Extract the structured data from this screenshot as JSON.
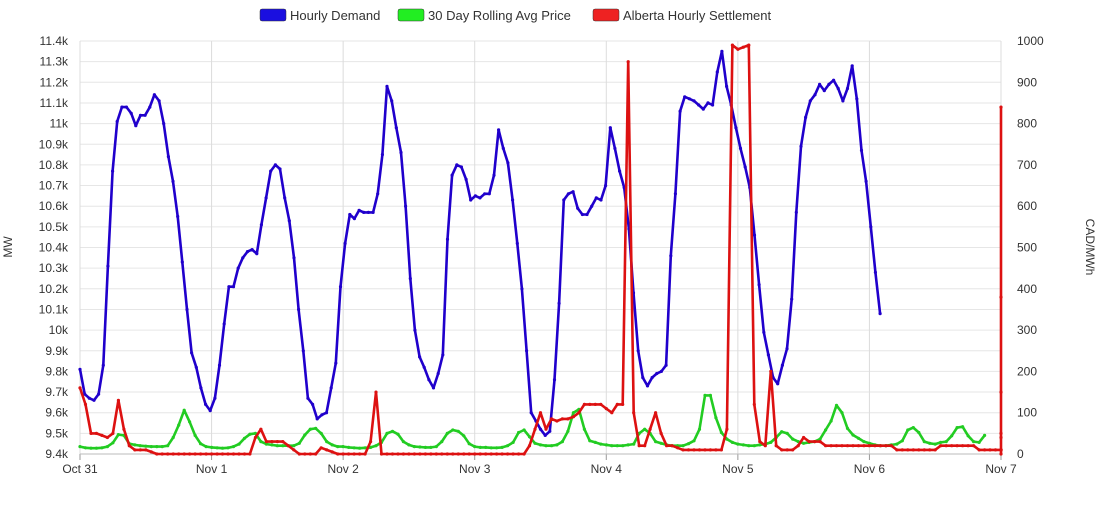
{
  "chart_data": {
    "type": "line",
    "title": "",
    "xlabel": "",
    "ylabel_left": "MW",
    "ylabel_right": "CAD/MWh",
    "ylim_left": [
      9400,
      11400
    ],
    "ylim_right": [
      0,
      1000
    ],
    "grid": true,
    "legend_position": "top",
    "x_range_hours": [
      0,
      168
    ],
    "x_ticks": [
      {
        "hour": 0,
        "label": "Oct 31"
      },
      {
        "hour": 24,
        "label": "Nov 1"
      },
      {
        "hour": 48,
        "label": "Nov 2"
      },
      {
        "hour": 72,
        "label": "Nov 3"
      },
      {
        "hour": 96,
        "label": "Nov 4"
      },
      {
        "hour": 120,
        "label": "Nov 5"
      },
      {
        "hour": 144,
        "label": "Nov 6"
      },
      {
        "hour": 168,
        "label": "Nov 7"
      }
    ],
    "y_ticks_left": [
      "9.4k",
      "9.5k",
      "9.6k",
      "9.7k",
      "9.8k",
      "9.9k",
      "10k",
      "10.1k",
      "10.2k",
      "10.3k",
      "10.4k",
      "10.5k",
      "10.6k",
      "10.7k",
      "10.8k",
      "10.9k",
      "11k",
      "11.1k",
      "11.2k",
      "11.3k",
      "11.4k"
    ],
    "y_ticks_right": [
      "0",
      "100",
      "200",
      "300",
      "400",
      "500",
      "600",
      "700",
      "800",
      "900",
      "1000"
    ],
    "series": [
      {
        "name": "Hourly Demand",
        "axis": "left",
        "color": "#2000cc",
        "legend_color": "#1a0fe0",
        "values": [
          9810,
          9690,
          9670,
          9660,
          9690,
          9830,
          10310,
          10770,
          11010,
          11080,
          11080,
          11050,
          10990,
          11040,
          11040,
          11080,
          11140,
          11110,
          11000,
          10840,
          10720,
          10550,
          10330,
          10100,
          9890,
          9820,
          9720,
          9640,
          9610,
          9670,
          9830,
          10030,
          10210,
          10210,
          10300,
          10350,
          10380,
          10390,
          10370,
          10510,
          10640,
          10770,
          10800,
          10780,
          10640,
          10530,
          10350,
          10100,
          9900,
          9670,
          9640,
          9570,
          9590,
          9600,
          9720,
          9840,
          10210,
          10420,
          10560,
          10540,
          10580,
          10570,
          10570,
          10570,
          10660,
          10850,
          11180,
          11110,
          10980,
          10860,
          10600,
          10250,
          10000,
          9870,
          9820,
          9760,
          9720,
          9790,
          9880,
          10440,
          10750,
          10800,
          10790,
          10730,
          10630,
          10650,
          10640,
          10660,
          10660,
          10750,
          10970,
          10880,
          10810,
          10630,
          10420,
          10200,
          9900,
          9600,
          9560,
          9520,
          9490,
          9510,
          9760,
          10130,
          10630,
          10660,
          10670,
          10590,
          10560,
          10560,
          10600,
          10640,
          10630,
          10700,
          10980,
          10880,
          10770,
          10690,
          10490,
          10180,
          9900,
          9770,
          9730,
          9770,
          9790,
          9800,
          9830,
          10360,
          10660,
          11060,
          11130,
          11120,
          11110,
          11090,
          11070,
          11100,
          11090,
          11250,
          11350,
          11180,
          11090,
          10980,
          10880,
          10790,
          10690,
          10460,
          10220,
          9990,
          9880,
          9770,
          9740,
          9830,
          9910,
          10150,
          10570,
          10890,
          11030,
          11110,
          11140,
          11190,
          11160,
          11190,
          11210,
          11170,
          11110,
          11170,
          11280,
          11120,
          10870,
          10720,
          10500,
          10280,
          10080
        ],
        "start_hour": 0,
        "step_hours": 0.8485
      },
      {
        "name": "30 Day Rolling Avg Price",
        "axis": "right",
        "color": "#22cc22",
        "legend_color": "#22ee22",
        "values": [
          18,
          15,
          14,
          14,
          15,
          18,
          27,
          47,
          45,
          25,
          22,
          20,
          19,
          18,
          18,
          18,
          20,
          40,
          70,
          106,
          78,
          45,
          25,
          18,
          16,
          15,
          14,
          15,
          18,
          24,
          38,
          48,
          50,
          30,
          24,
          22,
          20,
          20,
          20,
          20,
          26,
          46,
          60,
          62,
          50,
          30,
          22,
          18,
          18,
          16,
          15,
          14,
          15,
          16,
          20,
          28,
          50,
          55,
          48,
          30,
          22,
          18,
          17,
          16,
          16,
          18,
          30,
          50,
          58,
          55,
          44,
          25,
          18,
          16,
          16,
          15,
          15,
          16,
          20,
          28,
          52,
          58,
          42,
          26,
          22,
          20,
          20,
          22,
          30,
          55,
          100,
          108,
          60,
          32,
          28,
          24,
          22,
          20,
          20,
          20,
          22,
          24,
          50,
          60,
          50,
          30,
          26,
          22,
          20,
          20,
          20,
          25,
          32,
          60,
          142,
          142,
          88,
          52,
          36,
          28,
          24,
          22,
          20,
          20,
          22,
          24,
          28,
          40,
          54,
          50,
          36,
          30,
          26,
          28,
          30,
          36,
          58,
          80,
          118,
          100,
          62,
          46,
          38,
          30,
          26,
          22,
          20,
          20,
          22,
          24,
          32,
          58,
          64,
          52,
          30,
          26,
          24,
          28,
          30,
          44,
          64,
          66,
          44,
          30,
          28,
          45
        ],
        "start_hour": 0,
        "step_hours": 1.0
      },
      {
        "name": "Alberta Hourly Settlement",
        "axis": "right",
        "color": "#dd1111",
        "legend_color": "#ee2222",
        "values": [
          160,
          120,
          50,
          50,
          45,
          40,
          50,
          130,
          60,
          20,
          10,
          10,
          10,
          5,
          0,
          0,
          0,
          0,
          0,
          0,
          0,
          0,
          0,
          0,
          0,
          0,
          0,
          0,
          0,
          0,
          0,
          0,
          40,
          60,
          30,
          30,
          30,
          30,
          20,
          10,
          0,
          0,
          0,
          0,
          15,
          10,
          5,
          0,
          0,
          0,
          0,
          0,
          0,
          30,
          150,
          0,
          0,
          0,
          0,
          0,
          0,
          0,
          0,
          0,
          0,
          0,
          0,
          0,
          0,
          0,
          0,
          0,
          0,
          0,
          0,
          0,
          0,
          0,
          0,
          0,
          0,
          0,
          20,
          60,
          100,
          60,
          85,
          80,
          85,
          85,
          90,
          100,
          120,
          120,
          120,
          120,
          110,
          100,
          120,
          120,
          950,
          100,
          20,
          20,
          60,
          100,
          50,
          20,
          20,
          15,
          10,
          10,
          10,
          10,
          10,
          10,
          10,
          10,
          60,
          990,
          980,
          985,
          990,
          120,
          30,
          20,
          200,
          20,
          10,
          10,
          10,
          20,
          40,
          30,
          30,
          30,
          20,
          20,
          20,
          20,
          20,
          20,
          20,
          20,
          20,
          20,
          20,
          20,
          20,
          10,
          10,
          10,
          10,
          10,
          10,
          10,
          10,
          20,
          20,
          20,
          20,
          20,
          20,
          20,
          10,
          10,
          10,
          10,
          10,
          10,
          10,
          10,
          10,
          10,
          10,
          10,
          10,
          40,
          10,
          380,
          0,
          840,
          150,
          50
        ],
        "start_hour": 0,
        "step_hours": 1.0
      }
    ]
  },
  "legend": {
    "items": [
      {
        "label": "Hourly Demand",
        "color": "#1a0fe0"
      },
      {
        "label": "30 Day Rolling Avg Price",
        "color": "#22ee22"
      },
      {
        "label": "Alberta Hourly Settlement",
        "color": "#ee2222"
      }
    ]
  }
}
